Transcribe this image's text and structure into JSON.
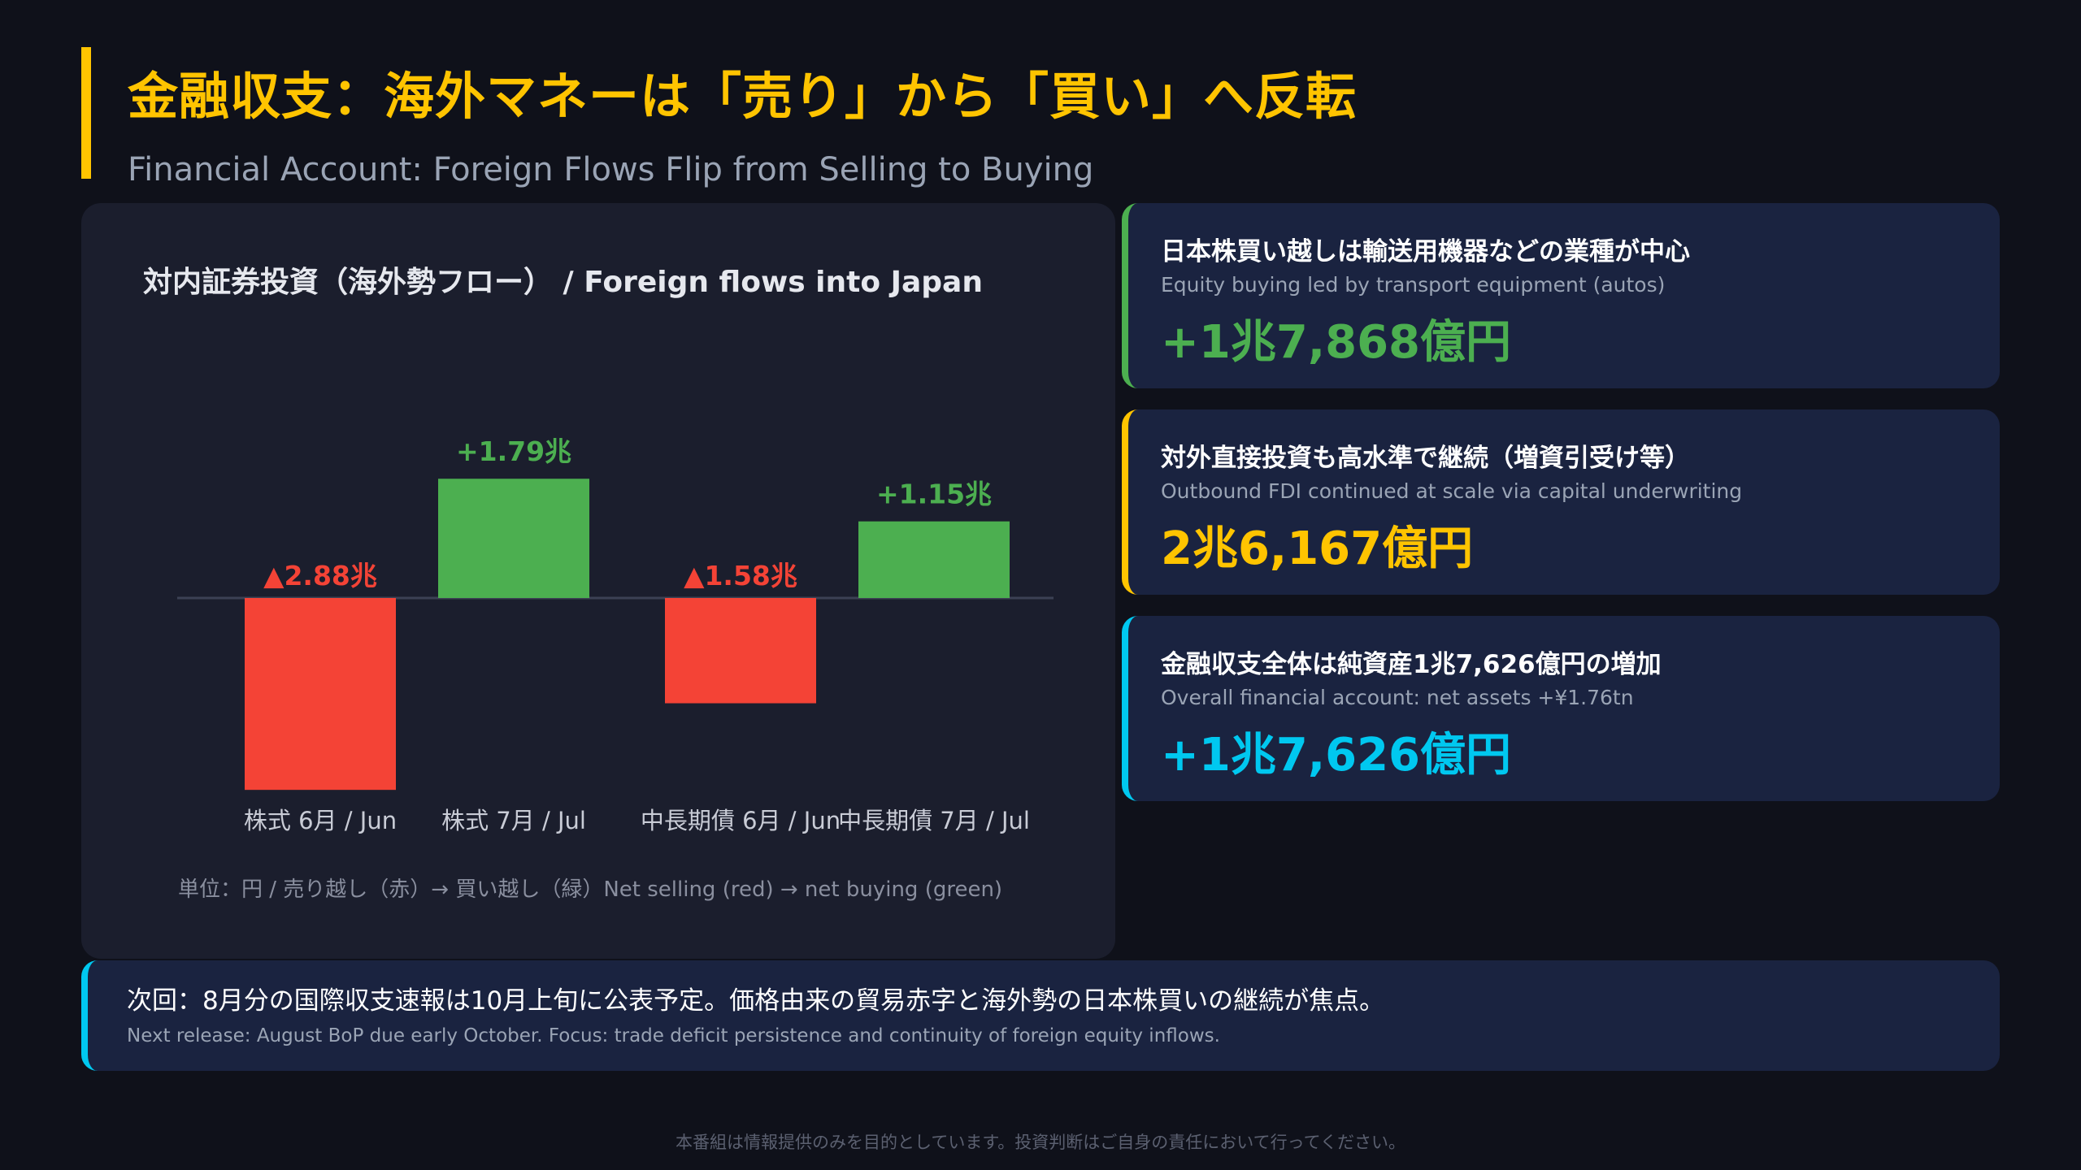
{
  "header": {
    "title_jp": "金融収支：海外マネーは「売り」から「買い」へ反転",
    "title_en": "Financial Account: Foreign Flows Flip from Selling to Buying"
  },
  "colors": {
    "accent": "#ffc400",
    "negative": "#f44336",
    "positive": "#4caf50",
    "cyan": "#00c8f0",
    "panel": "#1b1e2d",
    "card": "#1a2340"
  },
  "chart_data": {
    "type": "bar",
    "title": "対内証券投資（海外勢フロー） / Foreign flows into Japan",
    "categories": [
      "株式 6月 / Jun",
      "株式 7月 / Jul",
      "中長期債 6月 / Jun",
      "中長期債 7月 / Jul"
    ],
    "values": [
      -2.88,
      1.79,
      -1.58,
      1.15
    ],
    "data_labels": [
      "▲2.88兆",
      "+1.79兆",
      "▲1.58兆",
      "+1.15兆"
    ],
    "unit_note": "単位：円 / 売り越し（赤）→ 買い越し（緑）Net selling (red) → net buying (green)",
    "colors": [
      "#f44336",
      "#4caf50",
      "#f44336",
      "#4caf50"
    ]
  },
  "cards": [
    {
      "title_jp": "日本株買い越しは輸送用機器などの業種が中心",
      "title_en": "Equity buying led by transport equipment (autos)",
      "value": "+1兆7,868億円",
      "color": "#4caf50"
    },
    {
      "title_jp": "対外直接投資も高水準で継続（増資引受け等）",
      "title_en": "Outbound FDI continued at scale via capital underwriting",
      "value": "2兆6,167億円",
      "color": "#ffc400"
    },
    {
      "title_jp": "金融収支全体は純資産1兆7,626億円の増加",
      "title_en": "Overall financial account: net assets +¥1.76tn",
      "value": "+1兆7,626億円",
      "color": "#00c8f0"
    }
  ],
  "footer_note": {
    "jp": "次回：8月分の国際収支速報は10月上旬に公表予定。価格由来の貿易赤字と海外勢の日本株買いの継続が焦点。",
    "en": "Next release: August BoP due early October. Focus: trade deficit persistence and continuity of foreign equity inflows."
  },
  "disclaimer": "本番組は情報提供のみを目的としています。投資判断はご自身の責任において行ってください。"
}
